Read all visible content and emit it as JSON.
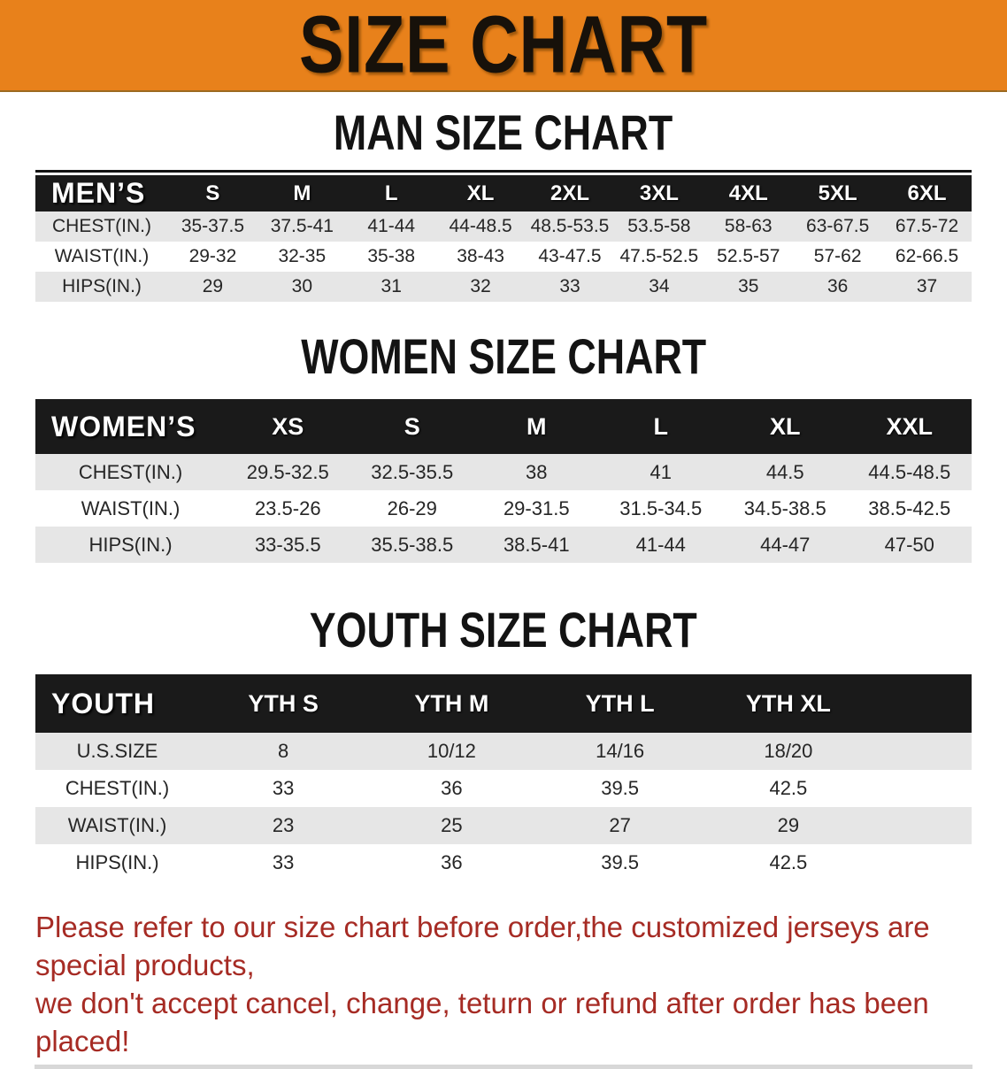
{
  "banner": {
    "title": "SIZE CHART"
  },
  "colors": {
    "banner_bg": "#E8811B",
    "table_header_bg": "#1A1A1A",
    "row_stripe_bg": "#E6E6E6",
    "disclaimer_text": "#A62B24"
  },
  "chart_data": [
    {
      "type": "table",
      "heading": "MAN SIZE CHART",
      "corner_label": "MEN’S",
      "columns": [
        "S",
        "M",
        "L",
        "XL",
        "2XL",
        "3XL",
        "4XL",
        "5XL",
        "6XL"
      ],
      "rows": [
        {
          "label": "CHEST(IN.)",
          "values": [
            "35-37.5",
            "37.5-41",
            "41-44",
            "44-48.5",
            "48.5-53.5",
            "53.5-58",
            "58-63",
            "63-67.5",
            "67.5-72"
          ]
        },
        {
          "label": "WAIST(IN.)",
          "values": [
            "29-32",
            "32-35",
            "35-38",
            "38-43",
            "43-47.5",
            "47.5-52.5",
            "52.5-57",
            "57-62",
            "62-66.5"
          ]
        },
        {
          "label": "HIPS(IN.)",
          "values": [
            "29",
            "30",
            "31",
            "32",
            "33",
            "34",
            "35",
            "36",
            "37"
          ]
        }
      ]
    },
    {
      "type": "table",
      "heading": "WOMEN SIZE CHART",
      "corner_label": "WOMEN’S",
      "columns": [
        "XS",
        "S",
        "M",
        "L",
        "XL",
        "XXL"
      ],
      "rows": [
        {
          "label": "CHEST(IN.)",
          "values": [
            "29.5-32.5",
            "32.5-35.5",
            "38",
            "41",
            "44.5",
            "44.5-48.5"
          ]
        },
        {
          "label": "WAIST(IN.)",
          "values": [
            "23.5-26",
            "26-29",
            "29-31.5",
            "31.5-34.5",
            "34.5-38.5",
            "38.5-42.5"
          ]
        },
        {
          "label": "HIPS(IN.)",
          "values": [
            "33-35.5",
            "35.5-38.5",
            "38.5-41",
            "41-44",
            "44-47",
            "47-50"
          ]
        }
      ]
    },
    {
      "type": "table",
      "heading": "YOUTH SIZE CHART",
      "corner_label": "YOUTH",
      "columns": [
        "YTH S",
        "YTH M",
        "YTH L",
        "YTH XL"
      ],
      "rows": [
        {
          "label": "U.S.SIZE",
          "values": [
            "8",
            "10/12",
            "14/16",
            "18/20"
          ]
        },
        {
          "label": "CHEST(IN.)",
          "values": [
            "33",
            "36",
            "39.5",
            "42.5"
          ]
        },
        {
          "label": "WAIST(IN.)",
          "values": [
            "23",
            "25",
            "27",
            "29"
          ]
        },
        {
          "label": "HIPS(IN.)",
          "values": [
            "33",
            "36",
            "39.5",
            "42.5"
          ]
        }
      ]
    }
  ],
  "disclaimer": {
    "line1": "Please refer to our size chart before order,the customized jerseys are special products,",
    "line2": "we don't accept cancel, change, teturn or refund after order has been placed!"
  }
}
